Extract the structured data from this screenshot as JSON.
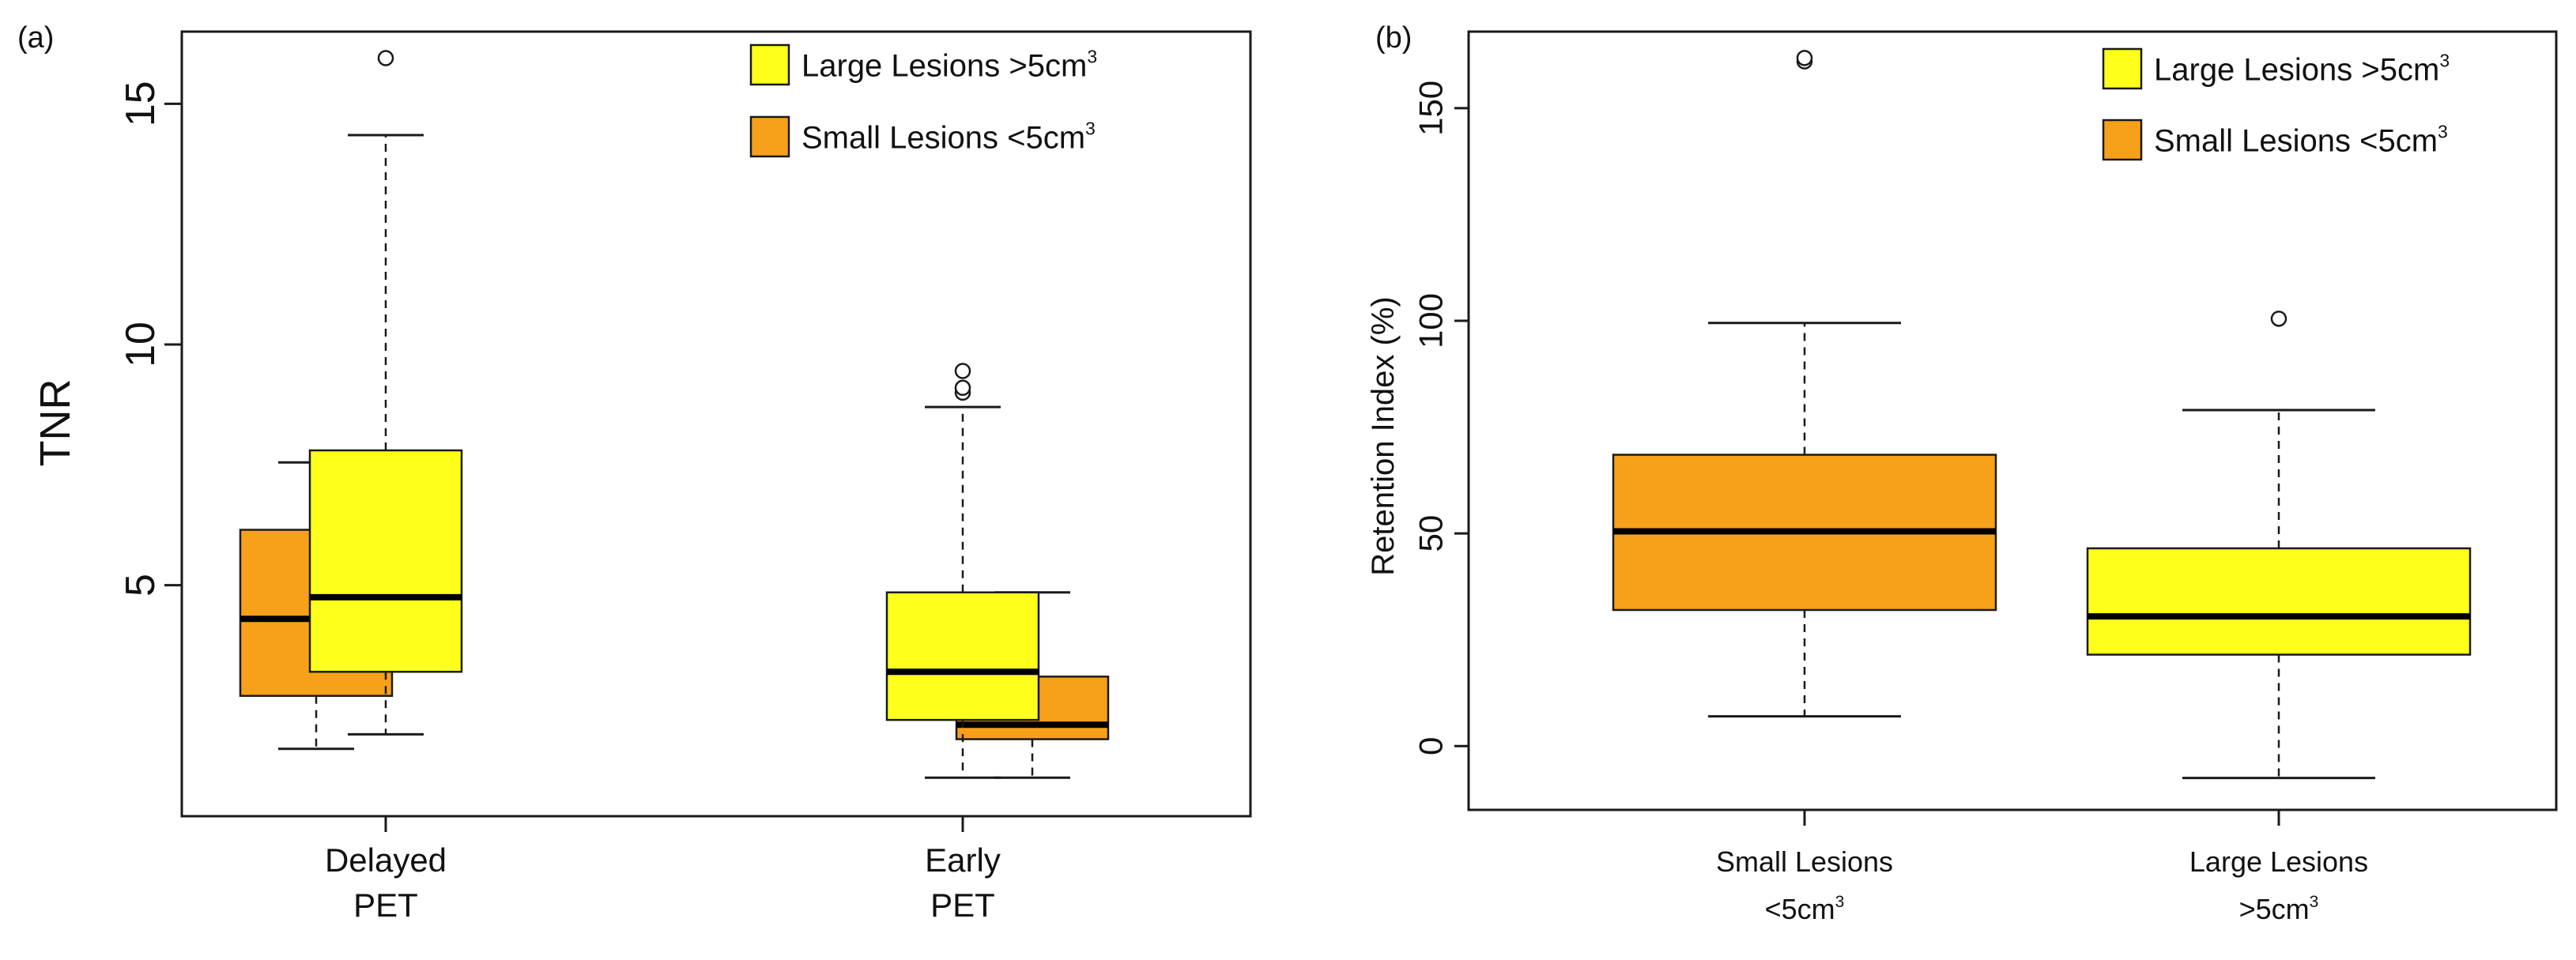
{
  "colors": {
    "small": "#F7A11A",
    "large": "#FFFF1C",
    "stroke": "#1a1a1a",
    "background": "#ffffff"
  },
  "chart_data": [
    {
      "panel_label": "(a)",
      "type": "box",
      "ylabel": "TNR",
      "ylim": [
        0.2,
        16.5
      ],
      "yticks": [
        5,
        10,
        15
      ],
      "grid": false,
      "legend": {
        "placement": "top-right",
        "entries": [
          {
            "color_key": "large",
            "text": "Large Lesions >5cm",
            "sup": "3"
          },
          {
            "color_key": "small",
            "text": "Small Lesions <5cm",
            "sup": "3"
          }
        ]
      },
      "groups": [
        {
          "label_lines": [
            "Delayed",
            "PET"
          ]
        },
        {
          "label_lines": [
            "Early",
            "PET"
          ]
        }
      ],
      "boxes": [
        {
          "group": 0,
          "series": "Small Lesions",
          "color_key": "small",
          "whisker_low": 1.6,
          "q1": 2.7,
          "median": 4.3,
          "q3": 6.15,
          "whisker_high": 7.55,
          "outliers": []
        },
        {
          "group": 0,
          "series": "Large Lesions",
          "color_key": "large",
          "whisker_low": 1.9,
          "q1": 3.2,
          "median": 4.75,
          "q3": 7.8,
          "whisker_high": 14.35,
          "outliers": [
            15.95
          ]
        },
        {
          "group": 1,
          "series": "Small Lesions",
          "color_key": "small",
          "whisker_low": 1.0,
          "q1": 1.8,
          "median": 2.1,
          "q3": 3.1,
          "whisker_high": 4.85,
          "outliers": []
        },
        {
          "group": 1,
          "series": "Large Lesions",
          "color_key": "large",
          "whisker_low": 1.0,
          "q1": 2.2,
          "median": 3.2,
          "q3": 4.85,
          "whisker_high": 8.7,
          "outliers": [
            9.0,
            9.1,
            9.45
          ]
        }
      ]
    },
    {
      "panel_label": "(b)",
      "type": "box",
      "ylabel": "Retention Index (%)",
      "ylim": [
        -15,
        168
      ],
      "yticks": [
        0,
        50,
        100,
        150
      ],
      "grid": false,
      "legend": {
        "placement": "top-right",
        "entries": [
          {
            "color_key": "large",
            "text": "Large Lesions >5cm",
            "sup": "3"
          },
          {
            "color_key": "small",
            "text": "Small Lesions <5cm",
            "sup": "3"
          }
        ]
      },
      "groups": [
        {
          "label_lines": [
            "Small Lesions",
            "<5cm"
          ],
          "sup": "3"
        },
        {
          "label_lines": [
            "Large Lesions",
            ">5cm"
          ],
          "sup": "3"
        }
      ],
      "boxes": [
        {
          "group": 0,
          "series": "Small Lesions",
          "color_key": "small",
          "whisker_low": 7,
          "q1": 32,
          "median": 50.5,
          "q3": 68.5,
          "whisker_high": 99.5,
          "outliers": [
            161,
            161.8
          ]
        },
        {
          "group": 1,
          "series": "Large Lesions",
          "color_key": "large",
          "whisker_low": -7.5,
          "q1": 21.5,
          "median": 30.5,
          "q3": 46.5,
          "whisker_high": 79,
          "outliers": [
            100.5
          ]
        }
      ]
    }
  ]
}
